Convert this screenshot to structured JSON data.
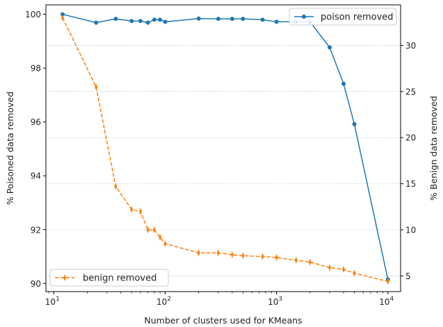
{
  "chart_data": {
    "type": "line",
    "xlabel": "Number of clusters used for KMeans",
    "ylabel_left": "% Poisoned data removed",
    "ylabel_right": "% Benign data removed",
    "x_scale": "log",
    "xlim": [
      8.5,
      13000
    ],
    "ylim_left": [
      89.7,
      100.35
    ],
    "ylim_right": [
      3.3,
      34.4
    ],
    "x_ticks": [
      {
        "value": 10,
        "base": "10",
        "exp": "1"
      },
      {
        "value": 100,
        "base": "10",
        "exp": "2"
      },
      {
        "value": 1000,
        "base": "10",
        "exp": "3"
      },
      {
        "value": 10000,
        "base": "10",
        "exp": "4"
      }
    ],
    "y_left_ticks": [
      90,
      92,
      94,
      96,
      98,
      100
    ],
    "y_right_ticks": [
      5,
      10,
      15,
      20,
      25,
      30
    ],
    "grid": "horizontal dotted at right-axis ticks",
    "series": [
      {
        "name": "poison removed",
        "axis": "left",
        "color": "#1f77b4",
        "style": "solid",
        "marker": "circle",
        "legend_position": "top-right",
        "x": [
          12,
          24,
          36,
          50,
          60,
          70,
          80,
          90,
          100,
          200,
          300,
          400,
          500,
          750,
          1000,
          1500,
          2000,
          3000,
          4000,
          5000,
          10000
        ],
        "y": [
          100.0,
          99.69,
          99.83,
          99.75,
          99.75,
          99.69,
          99.8,
          99.8,
          99.72,
          99.84,
          99.83,
          99.83,
          99.83,
          99.8,
          99.72,
          99.72,
          99.72,
          98.77,
          97.42,
          95.92,
          90.15
        ]
      },
      {
        "name": "benign removed",
        "axis": "right",
        "color": "#ff7f0e",
        "style": "dashed",
        "marker": "thin-diamond",
        "legend_position": "bottom-left",
        "x": [
          12,
          24,
          36,
          50,
          60,
          70,
          80,
          90,
          100,
          200,
          300,
          400,
          500,
          750,
          1000,
          1500,
          2000,
          3000,
          4000,
          5000,
          10000
        ],
        "y": [
          33.0,
          25.5,
          14.7,
          12.2,
          12.0,
          10.0,
          10.0,
          9.2,
          8.5,
          7.5,
          7.5,
          7.3,
          7.2,
          7.1,
          7.0,
          6.7,
          6.5,
          5.9,
          5.7,
          5.3,
          4.4
        ]
      }
    ]
  }
}
